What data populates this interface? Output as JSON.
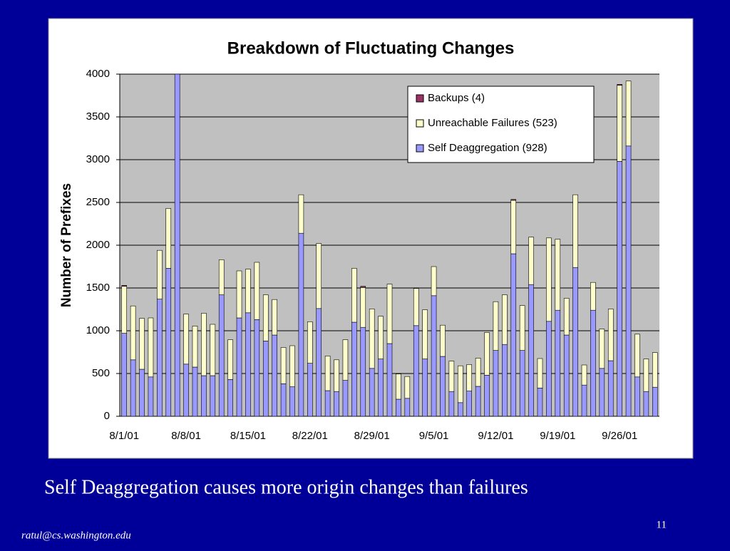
{
  "chart_data": {
    "type": "stacked_bar",
    "title": "Breakdown of Fluctuating Changes",
    "y_label": "Number of Prefixes",
    "categories": [
      "8/1/01",
      null,
      null,
      null,
      null,
      null,
      null,
      "8/8/01",
      null,
      null,
      null,
      null,
      null,
      null,
      "8/15/01",
      null,
      null,
      null,
      null,
      null,
      null,
      "8/22/01",
      null,
      null,
      null,
      null,
      null,
      null,
      "8/29/01",
      null,
      null,
      null,
      null,
      null,
      null,
      "9/5/01",
      null,
      null,
      null,
      null,
      null,
      null,
      "9/12/01",
      null,
      null,
      null,
      null,
      null,
      null,
      "9/19/01",
      null,
      null,
      null,
      null,
      null,
      null,
      "9/26/01",
      null,
      null,
      null,
      null
    ],
    "series": [
      {
        "name": "Self Deaggregation (928)",
        "color": "#9999ff",
        "values": [
          970,
          660,
          550,
          460,
          1370,
          1730,
          4000,
          610,
          575,
          475,
          475,
          1420,
          430,
          1150,
          1210,
          1130,
          880,
          950,
          380,
          345,
          2140,
          620,
          1260,
          300,
          290,
          420,
          1100,
          1040,
          560,
          670,
          850,
          200,
          210,
          1060,
          670,
          1410,
          700,
          290,
          160,
          295,
          350,
          480,
          770,
          840,
          1900,
          770,
          1540,
          330,
          1110,
          1240,
          950,
          1740,
          365,
          1240,
          560,
          650,
          2980,
          3160,
          460,
          290,
          340
        ]
      },
      {
        "name": "Unreachable Failures (523)",
        "color": "#ffffcc",
        "values": [
          550,
          630,
          595,
          690,
          570,
          700,
          0,
          585,
          480,
          730,
          600,
          410,
          465,
          550,
          510,
          670,
          540,
          415,
          425,
          480,
          450,
          485,
          760,
          405,
          370,
          475,
          630,
          465,
          695,
          500,
          695,
          295,
          255,
          435,
          575,
          340,
          365,
          355,
          430,
          310,
          330,
          500,
          570,
          580,
          625,
          525,
          555,
          345,
          975,
          830,
          430,
          850,
          235,
          325,
          460,
          605,
          890,
          760,
          500,
          380,
          405
        ]
      },
      {
        "name": "Backups (4)",
        "color": "#993366",
        "values": [
          10,
          0,
          0,
          0,
          0,
          0,
          0,
          0,
          0,
          0,
          0,
          0,
          0,
          0,
          0,
          0,
          0,
          0,
          0,
          0,
          0,
          0,
          0,
          0,
          0,
          0,
          0,
          15,
          0,
          0,
          0,
          0,
          0,
          0,
          0,
          0,
          0,
          0,
          0,
          0,
          0,
          0,
          0,
          0,
          10,
          0,
          0,
          0,
          0,
          0,
          0,
          0,
          0,
          0,
          0,
          0,
          10,
          0,
          0,
          0,
          0
        ]
      }
    ],
    "ylim": [
      0,
      4000
    ],
    "yticks": [
      0,
      500,
      1000,
      1500,
      2000,
      2500,
      3000,
      3500,
      4000
    ],
    "grid": true,
    "legend": "top-right"
  },
  "slide": {
    "caption": "Self Deaggregation causes more origin changes than failures",
    "footer": "ratul@cs.washington.edu",
    "page_number": 11
  }
}
